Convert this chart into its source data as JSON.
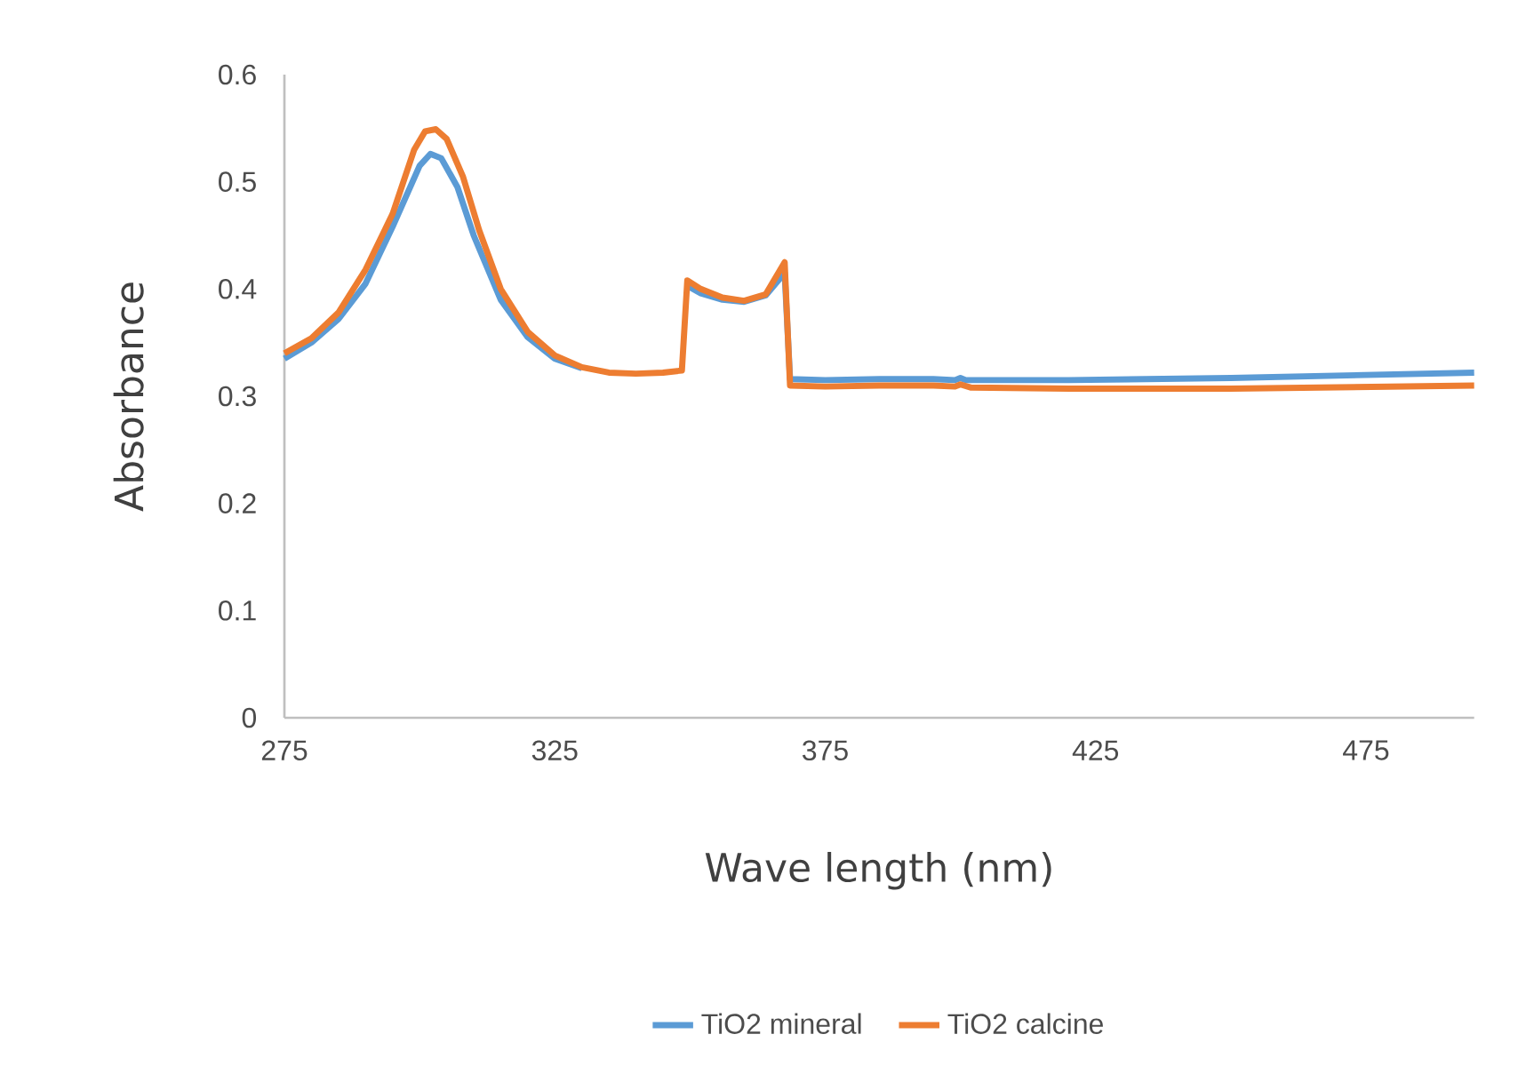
{
  "chart_data": {
    "type": "line",
    "xlabel": "Wave length (nm)",
    "ylabel": "Absorbance",
    "xlim": [
      275,
      495
    ],
    "xticks": [
      275,
      325,
      375,
      425,
      475
    ],
    "ylim": [
      0,
      0.6
    ],
    "yticks": [
      0,
      0.1,
      0.2,
      0.3,
      0.4,
      0.5,
      0.6
    ],
    "grid": false,
    "legend": "bottom",
    "marker": "none",
    "line_style": "solid",
    "series": [
      {
        "name": "TiO2 mineral",
        "color": "#5b9bd5",
        "x": [
          275,
          280,
          285,
          290,
          295,
          300,
          302,
          304,
          307,
          310,
          315,
          320,
          325,
          330,
          335,
          340,
          345,
          348.5,
          349.5,
          352,
          356,
          360,
          364,
          367.5,
          368.5,
          375,
          385,
          395,
          399,
          400,
          401,
          420,
          450,
          495
        ],
        "values": [
          0.335,
          0.35,
          0.372,
          0.405,
          0.458,
          0.515,
          0.526,
          0.522,
          0.495,
          0.45,
          0.39,
          0.355,
          0.335,
          0.326,
          null,
          null,
          null,
          null,
          0.403,
          0.396,
          0.39,
          0.388,
          0.394,
          0.415,
          0.316,
          0.315,
          0.316,
          0.316,
          0.315,
          0.317,
          0.315,
          0.315,
          0.317,
          0.322
        ]
      },
      {
        "name": "TiO2 calcine",
        "color": "#ed7d31",
        "x": [
          275,
          280,
          285,
          290,
          295,
          299,
          301,
          303,
          305,
          308,
          311,
          315,
          320,
          325,
          330,
          335,
          340,
          345,
          348.5,
          349.5,
          352,
          356,
          360,
          364,
          367.5,
          368.5,
          375,
          385,
          395,
          399,
          400,
          402,
          420,
          450,
          495
        ],
        "values": [
          0.34,
          0.354,
          0.378,
          0.418,
          0.47,
          0.53,
          0.547,
          0.549,
          0.54,
          0.505,
          0.455,
          0.4,
          0.36,
          0.338,
          0.327,
          0.322,
          0.321,
          0.322,
          0.324,
          0.408,
          0.4,
          0.392,
          0.389,
          0.395,
          0.425,
          0.31,
          0.309,
          0.31,
          0.31,
          0.309,
          0.311,
          0.308,
          0.307,
          0.307,
          0.31
        ]
      }
    ]
  }
}
